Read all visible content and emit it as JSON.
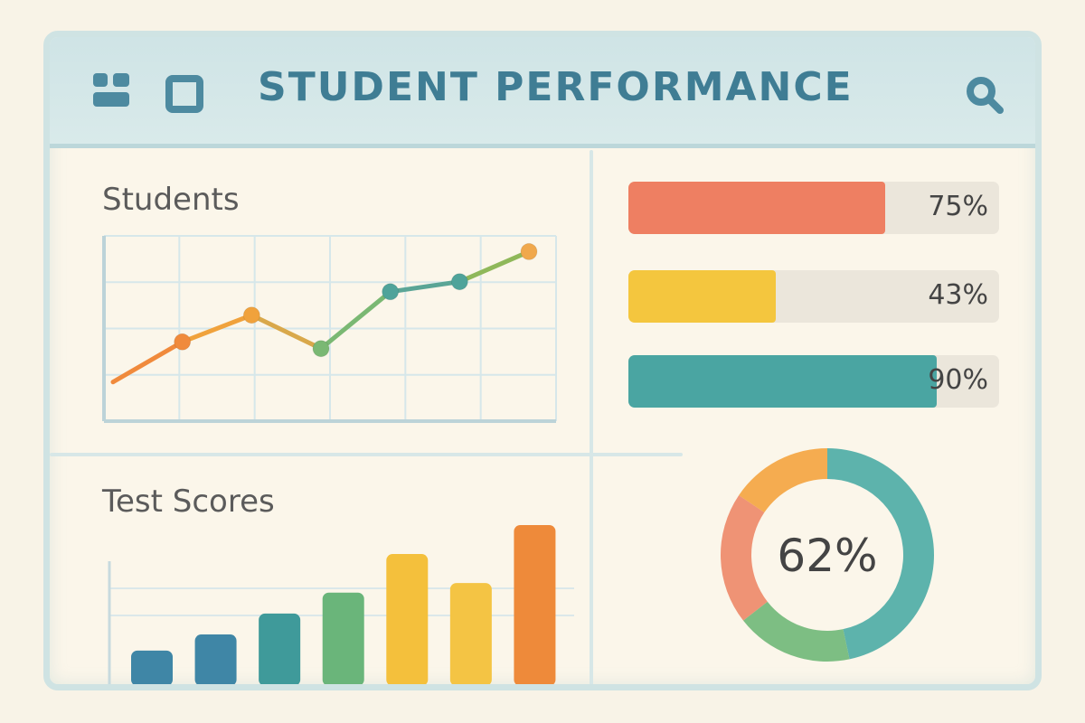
{
  "header": {
    "title": "STUDENT PERFORMANCE",
    "icons": [
      "grid-layout-icon",
      "square-icon",
      "search-icon"
    ]
  },
  "students_panel": {
    "title": "Students",
    "chart_data": {
      "type": "line",
      "x": [
        1,
        2,
        3,
        4,
        5,
        6,
        7
      ],
      "values": [
        18,
        42,
        58,
        38,
        72,
        78,
        96
      ],
      "grid": true,
      "point_colors": [
        "#f08a3c",
        "#f08a3c",
        "#f0a23c",
        "#7ab873",
        "#4fa39a",
        "#4fa39a",
        "#f0a84c"
      ]
    }
  },
  "test_scores_panel": {
    "title": "Test Scores",
    "chart_data": {
      "type": "bar",
      "values": [
        22,
        32,
        45,
        58,
        82,
        64,
        100
      ],
      "colors": [
        "#3f86a6",
        "#3f86a6",
        "#3f9a9a",
        "#6ab57a",
        "#f4c03c",
        "#f4c444",
        "#ee8a3a"
      ]
    }
  },
  "progress_bars": [
    {
      "value": 0.75,
      "label": "75%",
      "color": "#ee7f62"
    },
    {
      "value": 0.43,
      "label": "43%",
      "color": "#f4c63e"
    },
    {
      "value": 0.9,
      "label": "90%",
      "color": "#4aa5a2"
    }
  ],
  "donut": {
    "chart_data": {
      "type": "pie",
      "center_label": "62%",
      "slices": [
        {
          "value": 42,
          "color": "#4fada6"
        },
        {
          "value": 16,
          "color": "#72b87a"
        },
        {
          "value": 18,
          "color": "#ee8a6a"
        },
        {
          "value": 14,
          "color": "#f4a542"
        }
      ]
    }
  }
}
